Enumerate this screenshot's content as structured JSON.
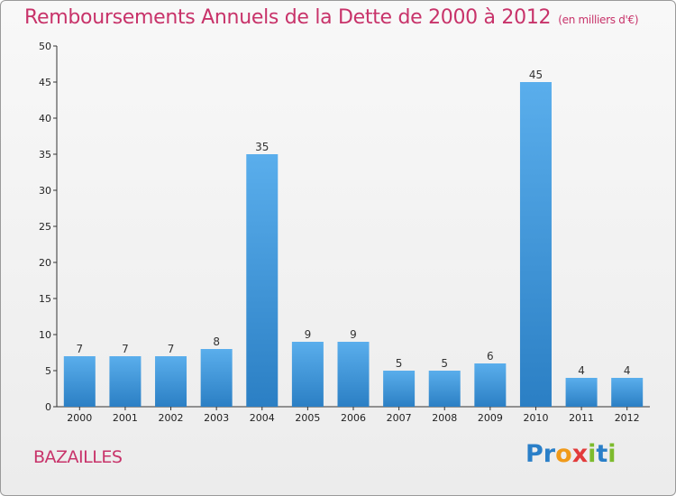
{
  "title": "Remboursements Annuels de la Dette de 2000 à 2012",
  "unit": "(en milliers d'€)",
  "commune": "BAZAILLES",
  "logo": {
    "letters": [
      {
        "char": "P",
        "color": "#2a7fc8"
      },
      {
        "char": "r",
        "color": "#2a7fc8"
      },
      {
        "char": "o",
        "color": "#f09a1a"
      },
      {
        "char": "x",
        "color": "#e23b3b"
      },
      {
        "char": "i",
        "color": "#7dbb2d"
      },
      {
        "char": "t",
        "color": "#2a7fc8"
      },
      {
        "char": "i",
        "color": "#7dbb2d"
      }
    ]
  },
  "colors": {
    "title": "#c8336a",
    "bar_light": "#5aaeec",
    "bar_dark": "#2b7fc4"
  },
  "chart_data": {
    "type": "bar",
    "categories": [
      "2000",
      "2001",
      "2002",
      "2003",
      "2004",
      "2005",
      "2006",
      "2007",
      "2008",
      "2009",
      "2010",
      "2011",
      "2012"
    ],
    "values": [
      7,
      7,
      7,
      8,
      35,
      9,
      9,
      5,
      5,
      6,
      45,
      4,
      4
    ],
    "ylim": [
      0,
      50
    ],
    "yticks": [
      0,
      5,
      10,
      15,
      20,
      25,
      30,
      35,
      40,
      45,
      50
    ],
    "grid": false,
    "legend": "none"
  }
}
